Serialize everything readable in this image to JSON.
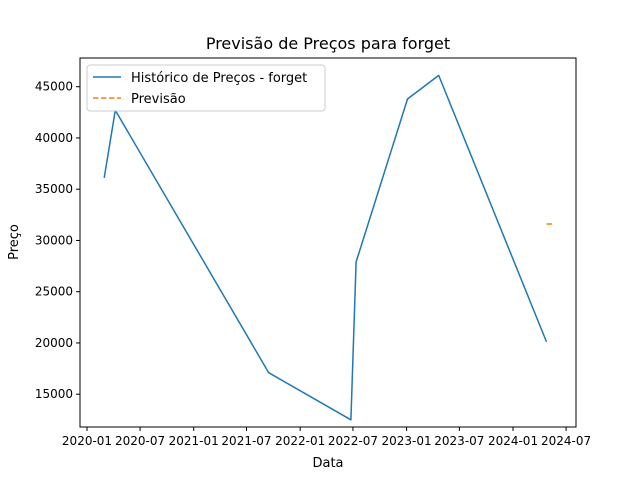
{
  "chart_data": {
    "type": "line",
    "title": "Previsão de Preços para forget",
    "xlabel": "Data",
    "ylabel": "Preço",
    "x_ticks": [
      "2020-01",
      "2020-07",
      "2021-01",
      "2021-07",
      "2022-01",
      "2022-07",
      "2023-01",
      "2023-07",
      "2024-01",
      "2024-07"
    ],
    "y_ticks": [
      15000,
      20000,
      25000,
      30000,
      35000,
      40000,
      45000
    ],
    "xlim": [
      "2019-12-08",
      "2024-08-04"
    ],
    "ylim": [
      11800,
      47800
    ],
    "grid": false,
    "legend_position": "top-left",
    "series": [
      {
        "name": "Histórico de Preços - forget",
        "style": "solid",
        "color": "#1f77b4",
        "points": [
          {
            "x": "2020-02-29",
            "y": 36100
          },
          {
            "x": "2020-04-07",
            "y": 42700
          },
          {
            "x": "2021-09-15",
            "y": 17100
          },
          {
            "x": "2022-06-24",
            "y": 12500
          },
          {
            "x": "2022-07-12",
            "y": 27900
          },
          {
            "x": "2023-01-04",
            "y": 43800
          },
          {
            "x": "2023-04-21",
            "y": 46100
          },
          {
            "x": "2024-04-25",
            "y": 20100
          }
        ]
      },
      {
        "name": "Previsão",
        "style": "dashed",
        "color": "#ff7f0e",
        "points": [
          {
            "x": "2024-04-25",
            "y": 31600
          },
          {
            "x": "2024-05-17",
            "y": 31600
          }
        ]
      }
    ]
  }
}
